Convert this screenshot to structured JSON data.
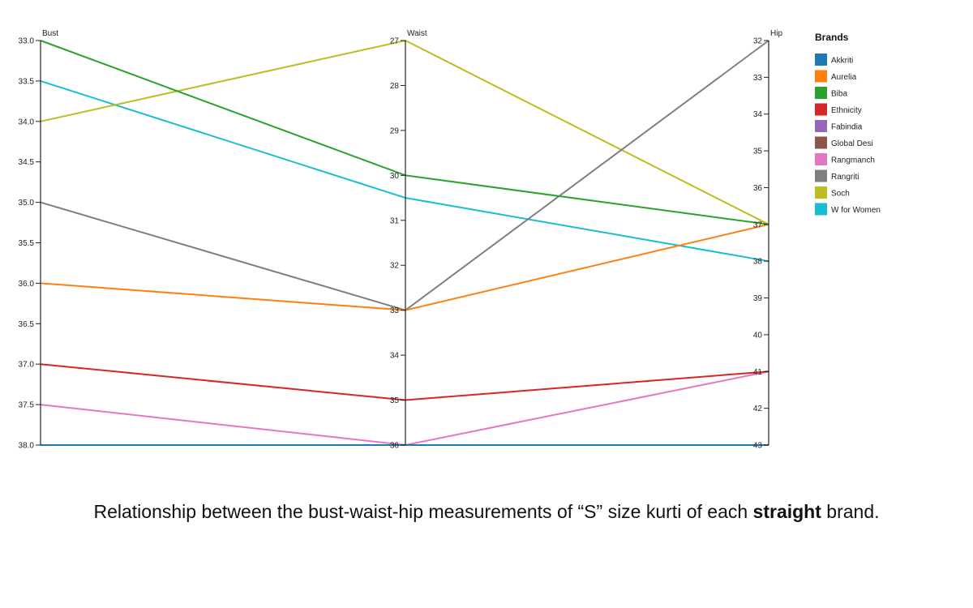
{
  "chart_data": {
    "type": "parallel-coordinates",
    "dimensions": [
      {
        "key": "bust",
        "label": "Bust",
        "domain": [
          33,
          38
        ],
        "ticks": [
          "33.0",
          "33.5",
          "34.0",
          "34.5",
          "35.0",
          "35.5",
          "36.0",
          "36.5",
          "37.0",
          "37.5",
          "38.0"
        ]
      },
      {
        "key": "waist",
        "label": "Waist",
        "domain": [
          27,
          36
        ],
        "ticks": [
          "27",
          "28",
          "29",
          "30",
          "31",
          "32",
          "33",
          "34",
          "35",
          "36"
        ]
      },
      {
        "key": "hip",
        "label": "Hip",
        "domain": [
          32,
          43
        ],
        "ticks": [
          "32",
          "33",
          "34",
          "35",
          "36",
          "37",
          "38",
          "39",
          "40",
          "41",
          "42",
          "43"
        ]
      }
    ],
    "legend": {
      "title": "Brands",
      "placement": "top-right"
    },
    "series": [
      {
        "name": "Akkriti",
        "color": "#1f77b4",
        "values": [
          38.0,
          36.0,
          43.0
        ]
      },
      {
        "name": "Aurelia",
        "color": "#ff7f0e",
        "values": [
          36.0,
          33.0,
          37.0
        ]
      },
      {
        "name": "Biba",
        "color": "#2ca02c",
        "values": [
          33.0,
          30.0,
          37.0
        ]
      },
      {
        "name": "Ethnicity",
        "color": "#d62728",
        "values": [
          37.0,
          35.0,
          41.0
        ]
      },
      {
        "name": "Fabindia",
        "color": "#9467bd",
        "values": [
          38.0,
          36.0,
          43.0
        ]
      },
      {
        "name": "Global Desi",
        "color": "#8c564b",
        "values": [
          38.0,
          36.0,
          43.0
        ]
      },
      {
        "name": "Rangmanch",
        "color": "#e377c2",
        "values": [
          37.5,
          36.0,
          41.0
        ]
      },
      {
        "name": "Rangriti",
        "color": "#7f7f7f",
        "values": [
          35.0,
          33.0,
          32.0
        ]
      },
      {
        "name": "Soch",
        "color": "#bcbd22",
        "values": [
          34.0,
          27.0,
          37.0
        ]
      },
      {
        "name": "W for Women",
        "color": "#17becf",
        "values": [
          33.5,
          30.5,
          38.0
        ]
      }
    ]
  },
  "caption": {
    "before": "Relationship between the bust-waist-hip measurements of “S” size kurti of each ",
    "bold": "straight",
    "after": " brand."
  }
}
